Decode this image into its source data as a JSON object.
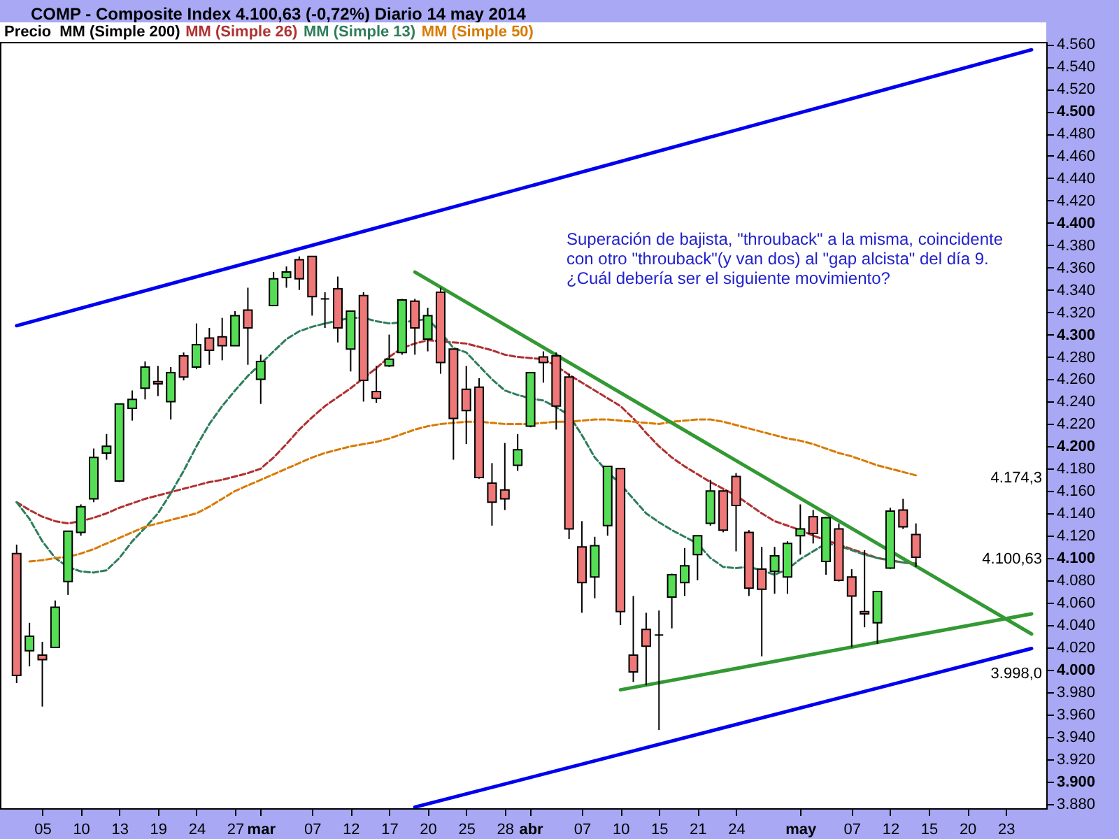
{
  "chart_data": {
    "type": "candlestick",
    "title": "COMP - Composite Index   4.100,63 (-0,72%)   Diario  14 may 2014",
    "legend": "top left",
    "categories": [
      null,
      null,
      "05",
      null,
      null,
      "10",
      null,
      null,
      "13",
      null,
      null,
      "19",
      null,
      null,
      "24",
      null,
      null,
      "27",
      null,
      "mar",
      null,
      null,
      null,
      "07",
      null,
      null,
      "12",
      null,
      null,
      "17",
      null,
      null,
      "20",
      null,
      null,
      "25",
      null,
      null,
      "28",
      null,
      "abr",
      null,
      null,
      null,
      "07",
      null,
      null,
      "10",
      null,
      null,
      "15",
      null,
      null,
      "21",
      null,
      null,
      "24",
      null,
      null,
      null,
      null,
      "may",
      null,
      null,
      null,
      "07",
      null,
      null,
      "12",
      null,
      null,
      "15",
      null,
      null,
      "20",
      null,
      null,
      "23",
      null,
      null
    ],
    "ylim": [
      3876,
      4562
    ],
    "yticks": [
      {
        "value": 3880,
        "label": "3.880"
      },
      {
        "value": 3900,
        "label": "3.900"
      },
      {
        "value": 3920,
        "label": "3.920"
      },
      {
        "value": 3940,
        "label": "3.940"
      },
      {
        "value": 3960,
        "label": "3.960"
      },
      {
        "value": 3980,
        "label": "3.980"
      },
      {
        "value": 4000,
        "label": "4.000"
      },
      {
        "value": 4020,
        "label": "4.020"
      },
      {
        "value": 4040,
        "label": "4.040"
      },
      {
        "value": 4060,
        "label": "4.060"
      },
      {
        "value": 4080,
        "label": "4.080"
      },
      {
        "value": 4100,
        "label": "4.100"
      },
      {
        "value": 4120,
        "label": "4.120"
      },
      {
        "value": 4140,
        "label": "4.140"
      },
      {
        "value": 4160,
        "label": "4.160"
      },
      {
        "value": 4180,
        "label": "4.180"
      },
      {
        "value": 4200,
        "label": "4.200"
      },
      {
        "value": 4220,
        "label": "4.220"
      },
      {
        "value": 4240,
        "label": "4.240"
      },
      {
        "value": 4260,
        "label": "4.260"
      },
      {
        "value": 4280,
        "label": "4.280"
      },
      {
        "value": 4300,
        "label": "4.300"
      },
      {
        "value": 4320,
        "label": "4.320"
      },
      {
        "value": 4340,
        "label": "4.340"
      },
      {
        "value": 4360,
        "label": "4.360"
      },
      {
        "value": 4380,
        "label": "4.380"
      },
      {
        "value": 4400,
        "label": "4.400"
      },
      {
        "value": 4420,
        "label": "4.420"
      },
      {
        "value": 4440,
        "label": "4.440"
      },
      {
        "value": 4460,
        "label": "4.460"
      },
      {
        "value": 4480,
        "label": "4.480"
      },
      {
        "value": 4500,
        "label": "4.500"
      },
      {
        "value": 4520,
        "label": "4.520"
      },
      {
        "value": 4540,
        "label": "4.540"
      },
      {
        "value": 4560,
        "label": "4.560"
      }
    ],
    "annotations": [
      "Superación de bajista, \"throuback\" a la misma, coincidente\ncon otro \"throuback\"(y van dos) al \"gap alcista\" del día 9.\n¿Cuál debería ser el siguiente movimiento?",
      "4.174,3",
      "4.100,63",
      "3.998,0"
    ],
    "series": [
      {
        "name": "Precio",
        "color": "#000000",
        "ohlc": [
          [
            4104,
            4112,
            3988,
            3995
          ],
          [
            4017,
            4042,
            4003,
            4030
          ],
          [
            4013,
            4025,
            3967,
            4009
          ],
          [
            4020,
            4062,
            4020,
            4056
          ],
          [
            4079,
            4124,
            4067,
            4124
          ],
          [
            4123,
            4148,
            4120,
            4146
          ],
          [
            4153,
            4198,
            4150,
            4190
          ],
          [
            4194,
            4211,
            4188,
            4200
          ],
          [
            4169,
            4238,
            4168,
            4238
          ],
          [
            4234,
            4250,
            4223,
            4242
          ],
          [
            4252,
            4276,
            4242,
            4271
          ],
          [
            4258,
            4272,
            4245,
            4256
          ],
          [
            4240,
            4271,
            4224,
            4266
          ],
          [
            4281,
            4284,
            4259,
            4262
          ],
          [
            4271,
            4310,
            4269,
            4291
          ],
          [
            4297,
            4306,
            4273,
            4286
          ],
          [
            4298,
            4315,
            4277,
            4290
          ],
          [
            4290,
            4321,
            4290,
            4317
          ],
          [
            4322,
            4342,
            4273,
            4306
          ],
          [
            4260,
            4282,
            4238,
            4276
          ],
          [
            4326,
            4356,
            4326,
            4350
          ],
          [
            4351,
            4361,
            4342,
            4356
          ],
          [
            4367,
            4370,
            4340,
            4350
          ],
          [
            4370,
            4370,
            4317,
            4334
          ],
          [
            4332,
            4338,
            4306,
            4332
          ],
          [
            4341,
            4352,
            4293,
            4306
          ],
          [
            4287,
            4321,
            4267,
            4321
          ],
          [
            4335,
            4338,
            4240,
            4259
          ],
          [
            4249,
            4272,
            4239,
            4243
          ],
          [
            4272,
            4300,
            4271,
            4278
          ],
          [
            4284,
            4332,
            4282,
            4331
          ],
          [
            4330,
            4332,
            4282,
            4306
          ],
          [
            4296,
            4324,
            4285,
            4317
          ],
          [
            4338,
            4342,
            4265,
            4275
          ],
          [
            4287,
            4287,
            4188,
            4225
          ],
          [
            4251,
            4272,
            4202,
            4232
          ],
          [
            4253,
            4261,
            4171,
            4172
          ],
          [
            4167,
            4185,
            4129,
            4150
          ],
          [
            4161,
            4203,
            4143,
            4153
          ],
          [
            4183,
            4211,
            4178,
            4197
          ],
          [
            4218,
            4266,
            4217,
            4266
          ],
          [
            4280,
            4285,
            4257,
            4275
          ],
          [
            4281,
            4284,
            4215,
            4236
          ],
          [
            4262,
            4265,
            4117,
            4126
          ],
          [
            4110,
            4133,
            4051,
            4078
          ],
          [
            4083,
            4119,
            4064,
            4111
          ],
          [
            4129,
            4182,
            4120,
            4182
          ],
          [
            4180,
            4180,
            4040,
            4052
          ],
          [
            4013,
            4066,
            3989,
            3998
          ],
          [
            4036,
            4051,
            3986,
            4021
          ],
          [
            4031,
            4053,
            3946,
            4031
          ],
          [
            4065,
            4086,
            4037,
            4085
          ],
          [
            4078,
            4109,
            4066,
            4093
          ],
          [
            4103,
            4120,
            4080,
            4120
          ],
          [
            4131,
            4170,
            4129,
            4160
          ],
          [
            4160,
            4161,
            4123,
            4125
          ],
          [
            4173,
            4176,
            4106,
            4147
          ],
          [
            4123,
            4125,
            4066,
            4073
          ],
          [
            4090,
            4110,
            4012,
            4072
          ],
          [
            4088,
            4110,
            4068,
            4102
          ],
          [
            4083,
            4115,
            4068,
            4113
          ],
          [
            4120,
            4148,
            4103,
            4126
          ],
          [
            4137,
            4143,
            4113,
            4122
          ],
          [
            4097,
            4137,
            4085,
            4136
          ],
          [
            4126,
            4131,
            4079,
            4080
          ],
          [
            4083,
            4090,
            4020,
            4066
          ],
          [
            4052,
            4107,
            4038,
            4050
          ],
          [
            4042,
            4070,
            4023,
            4070
          ],
          [
            4091,
            4145,
            4090,
            4142
          ],
          [
            4143,
            4153,
            4126,
            4128
          ],
          [
            4121,
            4131,
            4092,
            4100.63
          ],
          null,
          null,
          null,
          null,
          null,
          null,
          null,
          null,
          null
        ],
        "colors": [
          "#ee7777",
          "#55dd55",
          "#ee7777",
          "#55dd55",
          "#55dd55",
          "#55dd55",
          "#55dd55",
          "#55dd55",
          "#55dd55",
          "#55dd55",
          "#55dd55",
          "#ee7777",
          "#55dd55",
          "#ee7777",
          "#55dd55",
          "#ee7777",
          "#ee7777",
          "#55dd55",
          "#ee7777",
          "#55dd55",
          "#55dd55",
          "#55dd55",
          "#ee7777",
          "#ee7777",
          "#000000",
          "#ee7777",
          "#55dd55",
          "#ee7777",
          "#ee7777",
          "#55dd55",
          "#55dd55",
          "#ee7777",
          "#55dd55",
          "#ee7777",
          "#ee7777",
          "#ee7777",
          "#ee7777",
          "#ee7777",
          "#ee7777",
          "#55dd55",
          "#55dd55",
          "#ee7777",
          "#ee7777",
          "#ee7777",
          "#ee7777",
          "#55dd55",
          "#55dd55",
          "#ee7777",
          "#ee7777",
          "#ee7777",
          "#000000",
          "#55dd55",
          "#55dd55",
          "#55dd55",
          "#55dd55",
          "#ee7777",
          "#ee7777",
          "#ee7777",
          "#ee7777",
          "#55dd55",
          "#55dd55",
          "#55dd55",
          "#ee7777",
          "#55dd55",
          "#ee7777",
          "#ee7777",
          "#ee7777",
          "#55dd55",
          "#55dd55",
          "#ee7777",
          "#ee7777",
          null,
          null,
          null,
          null,
          null,
          null,
          null,
          null,
          null
        ]
      },
      {
        "name": "MM (Simple 200)",
        "type": "line",
        "color": "#000000",
        "values": [
          null,
          null,
          null,
          null,
          null,
          null,
          null,
          null,
          null,
          null,
          null,
          null,
          null,
          null,
          null,
          null,
          null,
          null,
          null,
          null,
          null,
          null,
          null,
          null,
          null,
          null,
          null,
          null,
          null,
          null,
          null,
          null,
          null,
          null,
          null,
          null,
          null,
          null,
          null,
          null,
          null,
          null,
          null,
          null,
          null,
          null,
          null,
          null,
          null,
          null,
          null,
          null,
          null,
          null,
          null,
          null,
          null,
          null,
          null,
          null,
          null,
          null,
          null,
          null,
          null,
          null,
          null,
          null,
          null,
          null,
          null,
          null,
          null,
          null,
          null,
          null,
          null,
          null,
          null,
          null
        ]
      },
      {
        "name": "MM (Simple 26)",
        "type": "line",
        "color": "#b03030",
        "line_style": "dashed",
        "values": [
          4150,
          4143,
          4137,
          4133,
          4131,
          4133,
          4136,
          4140,
          4145,
          4149,
          4153,
          4156,
          4159,
          4162,
          4165,
          4168,
          4170,
          4173,
          4176,
          4180,
          4190,
          4202,
          4215,
          4226,
          4236,
          4244,
          4252,
          4261,
          4270,
          4280,
          4288,
          4292,
          4295,
          null,
          4293,
          4292,
          4289,
          4286,
          4282,
          4280,
          4279,
          4278,
          4272,
          4264,
          4257,
          4250,
          4243,
          4236,
          4225,
          4212,
          4200,
          4190,
          4182,
          4175,
          4168,
          4162,
          4156,
          4148,
          4140,
          4133,
          4129,
          4125,
          4120,
          4116,
          4112,
          4108,
          4104,
          4100,
          null,
          4096,
          4095,
          null,
          null,
          null,
          null,
          null,
          null,
          null,
          null,
          null
        ]
      },
      {
        "name": "MM (Simple 13)",
        "type": "line",
        "color": "#2e7d5b",
        "line_style": "dashed",
        "values": [
          4150,
          4135,
          4115,
          4100,
          4092,
          4088,
          4087,
          4089,
          4100,
          4115,
          4127,
          4140,
          4158,
          4178,
          4200,
          4220,
          4236,
          4250,
          4263,
          4274,
          4285,
          4296,
          4303,
          4307,
          4310,
          null,
          4315,
          4315,
          4312,
          4310,
          4311,
          null,
          4314,
          4302,
          4288,
          4284,
          4272,
          4260,
          4250,
          4246,
          4243,
          4241,
          4235,
          4228,
          4210,
          4190,
          4177,
          4166,
          4153,
          4140,
          4132,
          4125,
          4119,
          4113,
          4100,
          4092,
          4091,
          4092,
          4089,
          4085,
          4090,
          4099,
          4106,
          4113,
          4111,
          4107,
          4103,
          4100,
          4098,
          4096,
          4095,
          null,
          null,
          null,
          null,
          null,
          null,
          null,
          null,
          null
        ]
      },
      {
        "name": "MM (Simple 50)",
        "type": "line",
        "color": "#d87a00",
        "line_style": "dashed",
        "values": [
          null,
          4097,
          4098,
          4100,
          4101,
          4104,
          4108,
          4113,
          4118,
          4123,
          4128,
          4131,
          4134,
          4137,
          4140,
          4146,
          4153,
          4160,
          4165,
          4170,
          4175,
          4180,
          4185,
          4190,
          4194,
          4197,
          4200,
          4202,
          4204,
          4207,
          4211,
          4215,
          4218,
          4220,
          4221,
          4222,
          4222,
          4221,
          4220,
          4220,
          4220,
          4221,
          4222,
          4222,
          4223,
          4224,
          4224,
          4223,
          4222,
          4221,
          4220,
          4222,
          4223,
          4224,
          4224,
          4222,
          4219,
          4216,
          4213,
          4210,
          4207,
          4205,
          4202,
          4198,
          4194,
          4191,
          4187,
          4183,
          4180,
          4177,
          4174,
          null,
          null,
          null,
          null,
          null,
          null,
          null,
          null,
          null
        ]
      },
      {
        "type": "line",
        "color": "#0000ee",
        "values": [
          4308,
          null,
          null,
          null,
          null,
          null,
          null,
          null,
          null,
          null,
          null,
          null,
          null,
          null,
          null,
          null,
          null,
          null,
          null,
          null,
          null,
          null,
          null,
          null,
          null,
          null,
          null,
          null,
          null,
          null,
          null,
          null,
          null,
          null,
          null,
          null,
          null,
          null,
          null,
          null,
          null,
          null,
          null,
          null,
          null,
          null,
          null,
          null,
          null,
          null,
          null,
          null,
          null,
          null,
          null,
          null,
          null,
          null,
          null,
          null,
          null,
          null,
          null,
          null,
          null,
          null,
          null,
          null,
          null,
          null,
          null,
          null,
          null,
          null,
          null,
          null,
          null,
          null,
          null,
          4555
        ]
      },
      {
        "type": "line",
        "color": "#0000ee",
        "values": [
          null,
          null,
          null,
          null,
          null,
          null,
          null,
          null,
          null,
          null,
          null,
          null,
          null,
          null,
          null,
          null,
          null,
          null,
          null,
          null,
          null,
          null,
          null,
          null,
          null,
          null,
          null,
          null,
          null,
          null,
          null,
          3877,
          null,
          null,
          null,
          null,
          null,
          null,
          null,
          null,
          null,
          null,
          null,
          null,
          null,
          null,
          null,
          null,
          null,
          null,
          null,
          null,
          null,
          null,
          null,
          null,
          null,
          null,
          null,
          null,
          null,
          null,
          null,
          null,
          null,
          null,
          null,
          null,
          null,
          null,
          null,
          null,
          null,
          null,
          null,
          null,
          null,
          null,
          null,
          4019
        ]
      },
      {
        "type": "line",
        "color": "#339933",
        "values": [
          null,
          null,
          null,
          null,
          null,
          null,
          null,
          null,
          null,
          null,
          null,
          null,
          null,
          null,
          null,
          null,
          null,
          null,
          null,
          null,
          null,
          null,
          null,
          null,
          null,
          null,
          null,
          null,
          null,
          null,
          null,
          4356,
          null,
          null,
          null,
          null,
          null,
          null,
          null,
          null,
          null,
          null,
          null,
          null,
          null,
          null,
          null,
          null,
          null,
          null,
          null,
          null,
          null,
          null,
          null,
          null,
          null,
          null,
          null,
          null,
          null,
          null,
          null,
          null,
          null,
          null,
          null,
          null,
          null,
          null,
          null,
          null,
          null,
          null,
          null,
          null,
          null,
          null,
          null,
          4032
        ]
      },
      {
        "type": "line",
        "color": "#339933",
        "values": [
          null,
          null,
          null,
          null,
          null,
          null,
          null,
          null,
          null,
          null,
          null,
          null,
          null,
          null,
          null,
          null,
          null,
          null,
          null,
          null,
          null,
          null,
          null,
          null,
          null,
          null,
          null,
          null,
          null,
          null,
          null,
          null,
          null,
          null,
          null,
          null,
          null,
          null,
          null,
          null,
          null,
          null,
          null,
          null,
          null,
          null,
          null,
          3982,
          null,
          null,
          null,
          null,
          null,
          null,
          null,
          null,
          null,
          null,
          null,
          null,
          null,
          null,
          null,
          null,
          null,
          null,
          null,
          null,
          null,
          null,
          null,
          null,
          null,
          null,
          null,
          null,
          null,
          null,
          null,
          4050
        ]
      }
    ]
  }
}
